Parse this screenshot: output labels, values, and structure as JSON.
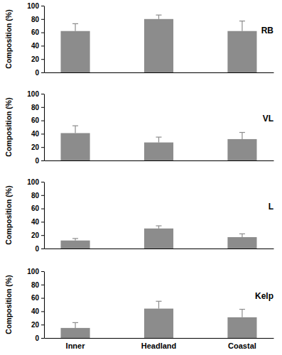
{
  "chart_data": [
    {
      "type": "bar",
      "title": "RB",
      "y_label": "Composition (%)",
      "categories": [
        null,
        null,
        null
      ],
      "values": [
        62,
        80,
        62
      ],
      "errors": [
        11,
        6,
        15
      ],
      "color": "#8c8c8c",
      "ylim": [
        0,
        100
      ],
      "yticks": [
        0,
        20,
        40,
        60,
        80,
        100
      ]
    },
    {
      "type": "bar",
      "title": "VL",
      "y_label": "Composition (%)",
      "categories": [
        null,
        null,
        null
      ],
      "values": [
        41,
        27,
        32
      ],
      "errors": [
        11,
        8,
        10
      ],
      "color": "#8c8c8c",
      "ylim": [
        0,
        100
      ],
      "yticks": [
        0,
        20,
        40,
        60,
        80,
        100
      ]
    },
    {
      "type": "bar",
      "title": "L",
      "y_label": "Composition (%)",
      "categories": [
        null,
        null,
        null
      ],
      "values": [
        12,
        30,
        17
      ],
      "errors": [
        3,
        4,
        5
      ],
      "color": "#8c8c8c",
      "ylim": [
        0,
        100
      ],
      "yticks": [
        0,
        20,
        40,
        60,
        80,
        100
      ]
    },
    {
      "type": "bar",
      "title": "Kelp",
      "y_label": "Composition (%)",
      "categories": [
        "Inner",
        "Headland",
        "Coastal"
      ],
      "values": [
        15,
        44,
        31
      ],
      "errors": [
        8,
        11,
        12
      ],
      "color": "#8c8c8c",
      "ylim": [
        0,
        100
      ],
      "yticks": [
        0,
        20,
        40,
        60,
        80,
        100
      ]
    }
  ]
}
